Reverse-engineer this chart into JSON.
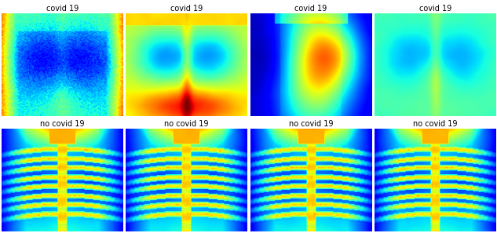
{
  "rows": 2,
  "cols": 4,
  "row_labels": [
    "covid 19",
    "covid 19",
    "covid 19",
    "covid 19",
    "no covid 19",
    "no covid 19",
    "no covid 19",
    "no covid 19"
  ],
  "label_fontsize": 7,
  "label_color": "black",
  "colormap": "jet",
  "fig_bg": "white",
  "figsize": [
    6.4,
    2.97
  ],
  "dpi": 100
}
